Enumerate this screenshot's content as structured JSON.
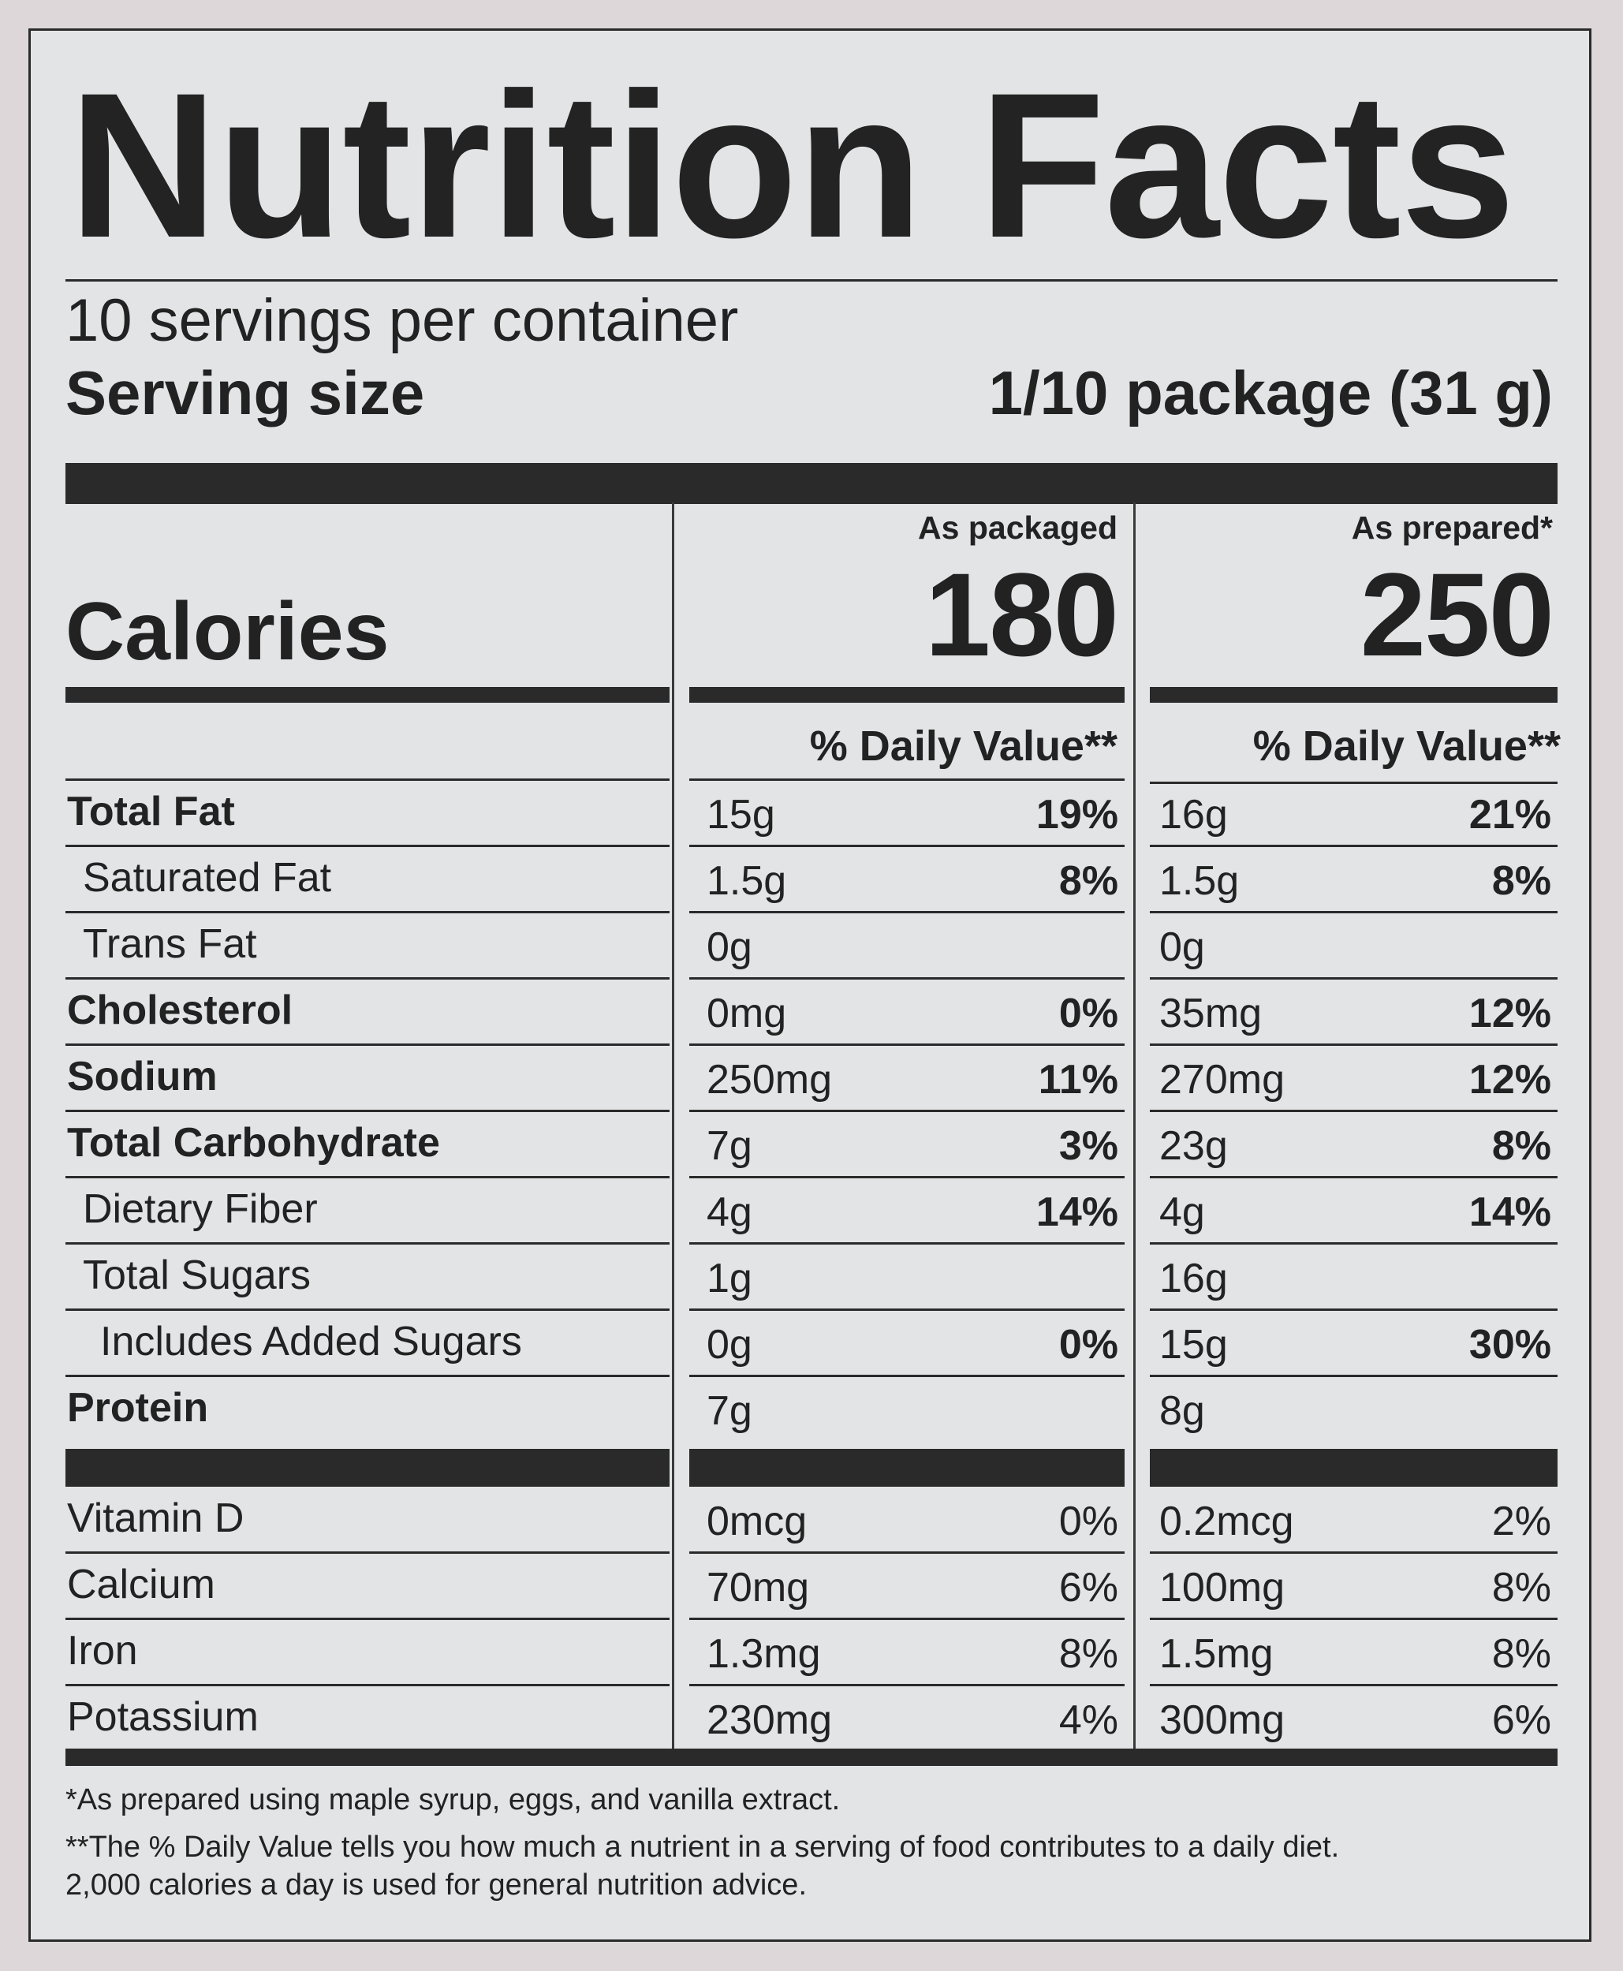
{
  "title": "Nutrition Facts",
  "servings_per_container": "10 servings per container",
  "serving_size": {
    "label": "Serving size",
    "value": "1/10 package (31 g)"
  },
  "columns": [
    {
      "heading": "As packaged",
      "calories": "180",
      "dv_heading": "% Daily Value**"
    },
    {
      "heading": "As prepared*",
      "calories": "250",
      "dv_heading": "% Daily Value**"
    }
  ],
  "calories_label": "Calories",
  "nutrients": [
    {
      "label": "Total Fat",
      "bold": true,
      "indent": 0,
      "packaged": {
        "amount": "15g",
        "dv": "19%"
      },
      "prepared": {
        "amount": "16g",
        "dv": "21%"
      }
    },
    {
      "label": "Saturated Fat",
      "bold": false,
      "indent": 1,
      "packaged": {
        "amount": "1.5g",
        "dv": "8%"
      },
      "prepared": {
        "amount": "1.5g",
        "dv": "8%"
      }
    },
    {
      "label": "Trans Fat",
      "bold": false,
      "indent": 1,
      "packaged": {
        "amount": "0g",
        "dv": ""
      },
      "prepared": {
        "amount": "0g",
        "dv": ""
      }
    },
    {
      "label": "Cholesterol",
      "bold": true,
      "indent": 0,
      "packaged": {
        "amount": "0mg",
        "dv": "0%"
      },
      "prepared": {
        "amount": "35mg",
        "dv": "12%"
      }
    },
    {
      "label": "Sodium",
      "bold": true,
      "indent": 0,
      "packaged": {
        "amount": "250mg",
        "dv": "11%"
      },
      "prepared": {
        "amount": "270mg",
        "dv": "12%"
      }
    },
    {
      "label": "Total Carbohydrate",
      "bold": true,
      "indent": 0,
      "packaged": {
        "amount": "7g",
        "dv": "3%"
      },
      "prepared": {
        "amount": "23g",
        "dv": "8%"
      }
    },
    {
      "label": "Dietary Fiber",
      "bold": false,
      "indent": 1,
      "packaged": {
        "amount": "4g",
        "dv": "14%"
      },
      "prepared": {
        "amount": "4g",
        "dv": "14%"
      }
    },
    {
      "label": "Total Sugars",
      "bold": false,
      "indent": 1,
      "packaged": {
        "amount": "1g",
        "dv": ""
      },
      "prepared": {
        "amount": "16g",
        "dv": ""
      }
    },
    {
      "label": "Includes Added Sugars",
      "bold": false,
      "indent": 2,
      "packaged": {
        "amount": "0g",
        "dv": "0%"
      },
      "prepared": {
        "amount": "15g",
        "dv": "30%"
      }
    },
    {
      "label": "Protein",
      "bold": true,
      "indent": 0,
      "packaged": {
        "amount": "7g",
        "dv": ""
      },
      "prepared": {
        "amount": "8g",
        "dv": ""
      }
    }
  ],
  "vitamins": [
    {
      "label": "Vitamin D",
      "packaged": {
        "amount": "0mcg",
        "dv": "0%"
      },
      "prepared": {
        "amount": "0.2mcg",
        "dv": "2%"
      }
    },
    {
      "label": "Calcium",
      "packaged": {
        "amount": "70mg",
        "dv": "6%"
      },
      "prepared": {
        "amount": "100mg",
        "dv": "8%"
      }
    },
    {
      "label": "Iron",
      "packaged": {
        "amount": "1.3mg",
        "dv": "8%"
      },
      "prepared": {
        "amount": "1.5mg",
        "dv": "8%"
      }
    },
    {
      "label": "Potassium",
      "packaged": {
        "amount": "230mg",
        "dv": "4%"
      },
      "prepared": {
        "amount": "300mg",
        "dv": "6%"
      }
    }
  ],
  "footnotes": [
    "*As prepared using maple syrup, eggs, and vanilla extract.",
    "**The % Daily Value tells you how much a nutrient in a serving of food contributes to a daily diet.",
    "2,000 calories a day is used for general nutrition advice."
  ]
}
